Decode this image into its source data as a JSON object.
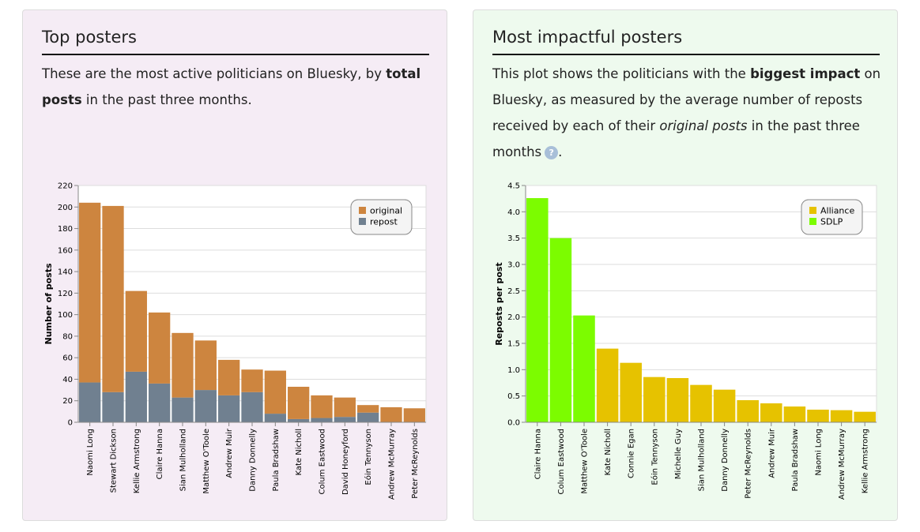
{
  "left_panel": {
    "title": "Top posters",
    "desc_1": "These are the most active politicians on Bluesky, by ",
    "desc_bold": "total posts",
    "desc_2": " in the past three months."
  },
  "right_panel": {
    "title": "Most impactful posters",
    "desc_1": "This plot shows the politicians with the ",
    "desc_bold": "biggest impact",
    "desc_2": " on Bluesky, as measured by the average number of reposts received by each of their ",
    "desc_italic": "original posts",
    "desc_3": " in the past three months",
    "desc_4": ".",
    "help_icon_glyph": "?"
  },
  "chart_data": [
    {
      "type": "bar",
      "stacked": true,
      "ylabel": "Number of posts",
      "ylim": [
        0,
        220
      ],
      "yticks": [
        0,
        20,
        40,
        60,
        80,
        100,
        120,
        140,
        160,
        180,
        200,
        220
      ],
      "grid": true,
      "legend_position": "top-right",
      "categories": [
        "Naomi Long",
        "Stewart Dickson",
        "Kellie Armstrong",
        "Claire Hanna",
        "Sian Mulholland",
        "Matthew O'Toole",
        "Andrew Muir",
        "Danny Donnelly",
        "Paula Bradshaw",
        "Kate Nicholl",
        "Colum Eastwood",
        "David Honeyford",
        "Eóin Tennyson",
        "Andrew McMurray",
        "Peter McReynolds"
      ],
      "series": [
        {
          "name": "original",
          "color": "#cd853f",
          "values": [
            167,
            173,
            75,
            66,
            60,
            46,
            33,
            21,
            40,
            30,
            21,
            18,
            7,
            14,
            13
          ]
        },
        {
          "name": "repost",
          "color": "#708090",
          "values": [
            37,
            28,
            47,
            36,
            23,
            30,
            25,
            28,
            8,
            3,
            4,
            5,
            9,
            0,
            0
          ]
        }
      ]
    },
    {
      "type": "bar",
      "ylabel": "Reposts per post",
      "ylim": [
        0,
        4.5
      ],
      "yticks": [
        0.0,
        0.5,
        1.0,
        1.5,
        2.0,
        2.5,
        3.0,
        3.5,
        4.0,
        4.5
      ],
      "grid": true,
      "legend_position": "top-right",
      "legend": [
        {
          "name": "Alliance",
          "color": "#e6c200"
        },
        {
          "name": "SDLP",
          "color": "#7cfc00"
        }
      ],
      "categories": [
        "Claire Hanna",
        "Colum Eastwood",
        "Matthew O'Toole",
        "Kate Nicholl",
        "Connie Egan",
        "Eóin Tennyson",
        "Michelle Guy",
        "Sian Mulholland",
        "Danny Donnelly",
        "Peter McReynolds",
        "Andrew Muir",
        "Paula Bradshaw",
        "Naomi Long",
        "Andrew McMurray",
        "Kellie Armstrong"
      ],
      "values": [
        4.26,
        3.5,
        2.03,
        1.4,
        1.13,
        0.86,
        0.84,
        0.71,
        0.62,
        0.42,
        0.36,
        0.3,
        0.24,
        0.23,
        0.2
      ],
      "party": [
        "SDLP",
        "SDLP",
        "SDLP",
        "Alliance",
        "Alliance",
        "Alliance",
        "Alliance",
        "Alliance",
        "Alliance",
        "Alliance",
        "Alliance",
        "Alliance",
        "Alliance",
        "Alliance",
        "Alliance"
      ]
    }
  ]
}
